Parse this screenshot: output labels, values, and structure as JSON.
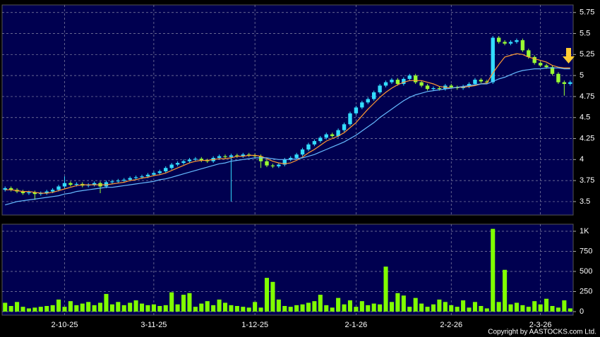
{
  "chart_data": [
    {
      "type": "candlestick",
      "up_color": "#33ddff",
      "down_color": "#99ff33",
      "open": [
        3.64,
        3.66,
        3.64,
        3.62,
        3.6,
        3.61,
        3.59,
        3.6,
        3.62,
        3.64,
        3.68,
        3.72,
        3.7,
        3.71,
        3.69,
        3.7,
        3.72,
        3.68,
        3.73,
        3.74,
        3.75,
        3.76,
        3.78,
        3.79,
        3.8,
        3.82,
        3.84,
        3.86,
        3.9,
        3.94,
        3.96,
        3.98,
        4.0,
        4.01,
        3.99,
        3.98,
        4.02,
        4.04,
        4.03,
        4.05,
        4.04,
        4.06,
        4.05,
        4.04,
        3.98,
        3.93,
        3.92,
        3.94,
        4.0,
        4.02,
        4.06,
        4.12,
        4.18,
        4.22,
        4.26,
        4.3,
        4.28,
        4.35,
        4.42,
        4.55,
        4.62,
        4.68,
        4.72,
        4.8,
        4.88,
        4.92,
        4.95,
        4.9,
        4.96,
        5.0,
        4.92,
        4.88,
        4.84,
        4.85,
        4.84,
        4.88,
        4.86,
        4.85,
        4.87,
        4.9,
        4.95,
        4.93,
        4.92,
        5.45,
        5.4,
        5.38,
        5.4,
        5.42,
        5.3,
        5.22,
        5.15,
        5.12,
        5.1,
        5.02,
        4.92,
        4.9
      ],
      "high": [
        3.68,
        3.68,
        3.66,
        3.64,
        3.63,
        3.63,
        3.62,
        3.64,
        3.66,
        3.7,
        3.8,
        3.74,
        3.73,
        3.73,
        3.72,
        3.74,
        3.74,
        3.75,
        3.76,
        3.77,
        3.78,
        3.8,
        3.81,
        3.82,
        3.84,
        3.86,
        3.88,
        3.92,
        3.96,
        3.98,
        4.0,
        4.02,
        4.03,
        4.03,
        4.01,
        4.04,
        4.06,
        4.06,
        4.07,
        4.07,
        4.08,
        4.08,
        4.07,
        4.06,
        4.0,
        3.95,
        3.96,
        4.02,
        4.04,
        4.08,
        4.14,
        4.2,
        4.24,
        4.28,
        4.32,
        4.32,
        4.37,
        4.44,
        4.57,
        4.64,
        4.7,
        4.74,
        4.82,
        4.9,
        4.94,
        4.97,
        4.97,
        4.98,
        5.02,
        5.02,
        4.94,
        4.9,
        4.87,
        4.87,
        4.9,
        4.9,
        4.88,
        4.89,
        4.92,
        4.97,
        4.97,
        4.95,
        5.47,
        5.47,
        5.42,
        5.42,
        5.44,
        5.44,
        5.32,
        5.24,
        5.17,
        5.14,
        5.12,
        5.04,
        4.94,
        4.94
      ],
      "low": [
        3.62,
        3.62,
        3.6,
        3.58,
        3.58,
        3.52,
        3.57,
        3.58,
        3.6,
        3.62,
        3.66,
        3.68,
        3.68,
        3.67,
        3.67,
        3.68,
        3.6,
        3.66,
        3.71,
        3.72,
        3.73,
        3.74,
        3.76,
        3.77,
        3.78,
        3.8,
        3.82,
        3.84,
        3.88,
        3.92,
        3.94,
        3.96,
        3.98,
        3.97,
        3.96,
        3.96,
        4.0,
        4.01,
        3.5,
        4.02,
        4.02,
        4.03,
        4.02,
        3.9,
        3.91,
        3.9,
        3.9,
        3.92,
        3.98,
        4.0,
        4.04,
        4.1,
        4.16,
        4.2,
        4.24,
        4.26,
        4.26,
        4.33,
        4.4,
        4.53,
        4.6,
        4.66,
        4.7,
        4.78,
        4.86,
        4.9,
        4.88,
        4.88,
        4.94,
        4.9,
        4.86,
        4.82,
        4.82,
        4.82,
        4.82,
        4.84,
        4.83,
        4.83,
        4.85,
        4.88,
        4.91,
        4.9,
        4.9,
        5.38,
        5.36,
        5.36,
        5.38,
        5.28,
        5.2,
        5.13,
        5.1,
        5.08,
        5.0,
        4.9,
        4.76,
        4.88
      ],
      "close": [
        3.66,
        3.64,
        3.62,
        3.6,
        3.61,
        3.59,
        3.6,
        3.62,
        3.64,
        3.68,
        3.72,
        3.7,
        3.71,
        3.69,
        3.7,
        3.72,
        3.68,
        3.73,
        3.74,
        3.75,
        3.76,
        3.78,
        3.79,
        3.8,
        3.82,
        3.84,
        3.86,
        3.9,
        3.94,
        3.96,
        3.98,
        4.0,
        4.01,
        3.99,
        3.98,
        4.02,
        4.04,
        4.03,
        4.05,
        4.04,
        4.06,
        4.05,
        4.04,
        3.98,
        3.93,
        3.92,
        3.94,
        4.0,
        4.02,
        4.06,
        4.12,
        4.18,
        4.22,
        4.26,
        4.3,
        4.28,
        4.35,
        4.42,
        4.55,
        4.62,
        4.68,
        4.72,
        4.8,
        4.88,
        4.92,
        4.95,
        4.9,
        4.96,
        5.0,
        4.92,
        4.88,
        4.84,
        4.85,
        4.84,
        4.88,
        4.86,
        4.85,
        4.87,
        4.9,
        4.95,
        4.93,
        4.92,
        5.45,
        5.4,
        5.38,
        5.4,
        5.42,
        5.3,
        5.22,
        5.15,
        5.12,
        5.1,
        5.02,
        4.92,
        4.9,
        4.92
      ],
      "series": [
        {
          "color": "#ff9933",
          "values": [
            3.64,
            3.64,
            3.63,
            3.62,
            3.62,
            3.61,
            3.6,
            3.6,
            3.61,
            3.63,
            3.65,
            3.67,
            3.69,
            3.7,
            3.7,
            3.7,
            3.7,
            3.7,
            3.71,
            3.72,
            3.73,
            3.75,
            3.76,
            3.78,
            3.79,
            3.81,
            3.82,
            3.84,
            3.87,
            3.9,
            3.93,
            3.96,
            3.98,
            3.99,
            3.99,
            4.0,
            4.01,
            4.01,
            4.02,
            4.04,
            4.04,
            4.05,
            4.05,
            4.04,
            4.01,
            3.98,
            3.96,
            3.95,
            3.96,
            3.99,
            4.03,
            4.08,
            4.12,
            4.17,
            4.22,
            4.25,
            4.28,
            4.32,
            4.38,
            4.44,
            4.52,
            4.6,
            4.67,
            4.74,
            4.8,
            4.85,
            4.89,
            4.92,
            4.94,
            4.94,
            4.94,
            4.92,
            4.9,
            4.87,
            4.86,
            4.85,
            4.86,
            4.86,
            4.87,
            4.88,
            4.9,
            4.91,
            5.03,
            5.13,
            5.22,
            5.24,
            5.26,
            5.25,
            5.22,
            5.2,
            5.18,
            5.16,
            5.12,
            5.1,
            5.09,
            5.09
          ]
        },
        {
          "color": "#66bbff",
          "values": [
            3.46,
            3.48,
            3.5,
            3.51,
            3.52,
            3.53,
            3.54,
            3.55,
            3.56,
            3.57,
            3.59,
            3.6,
            3.62,
            3.63,
            3.64,
            3.65,
            3.66,
            3.67,
            3.67,
            3.68,
            3.69,
            3.7,
            3.71,
            3.72,
            3.73,
            3.74,
            3.76,
            3.77,
            3.79,
            3.81,
            3.83,
            3.85,
            3.87,
            3.89,
            3.91,
            3.93,
            3.95,
            3.96,
            3.98,
            3.99,
            4.0,
            4.01,
            4.02,
            4.02,
            4.02,
            4.01,
            4.0,
            4.0,
            4.0,
            4.01,
            4.02,
            4.04,
            4.06,
            4.09,
            4.12,
            4.15,
            4.18,
            4.21,
            4.25,
            4.29,
            4.34,
            4.39,
            4.44,
            4.5,
            4.55,
            4.6,
            4.65,
            4.7,
            4.74,
            4.77,
            4.79,
            4.81,
            4.82,
            4.83,
            4.84,
            4.85,
            4.86,
            4.87,
            4.88,
            4.89,
            4.9,
            4.9,
            4.93,
            4.96,
            4.98,
            5.01,
            5.04,
            5.06,
            5.07,
            5.08,
            5.08,
            5.09,
            5.09,
            5.09,
            5.08,
            5.08
          ]
        }
      ],
      "ylim": [
        3.34,
        5.84
      ],
      "yticks": [
        3.5,
        3.75,
        4,
        4.25,
        4.5,
        4.75,
        5,
        5.25,
        5.5,
        5.75
      ],
      "grid": true
    },
    {
      "type": "bar",
      "categories": [
        null,
        null,
        null,
        null,
        null,
        null,
        null,
        null,
        null,
        null,
        "2-10-25",
        null,
        null,
        null,
        null,
        null,
        null,
        null,
        null,
        null,
        null,
        null,
        null,
        null,
        null,
        "3-11-25",
        null,
        null,
        null,
        null,
        null,
        null,
        null,
        null,
        null,
        null,
        null,
        null,
        null,
        null,
        null,
        null,
        "1-12-25",
        null,
        null,
        null,
        null,
        null,
        null,
        null,
        null,
        null,
        null,
        null,
        null,
        null,
        null,
        null,
        null,
        "2-1-26",
        null,
        null,
        null,
        null,
        null,
        null,
        null,
        null,
        null,
        null,
        null,
        null,
        null,
        null,
        null,
        "2-2-26",
        null,
        null,
        null,
        null,
        null,
        null,
        null,
        null,
        null,
        null,
        null,
        null,
        null,
        null,
        "2-3-26",
        null,
        null,
        null,
        null,
        null
      ],
      "values": [
        110,
        70,
        120,
        60,
        40,
        50,
        60,
        70,
        80,
        150,
        60,
        130,
        80,
        100,
        120,
        80,
        110,
        220,
        90,
        120,
        80,
        110,
        140,
        100,
        80,
        90,
        70,
        80,
        240,
        90,
        210,
        230,
        60,
        100,
        130,
        80,
        150,
        110,
        80,
        70,
        60,
        50,
        120,
        50,
        420,
        370,
        150,
        70,
        60,
        80,
        90,
        110,
        130,
        210,
        80,
        50,
        170,
        90,
        140,
        60,
        130,
        80,
        100,
        90,
        560,
        120,
        230,
        200,
        60,
        170,
        100,
        60,
        90,
        150,
        120,
        80,
        60,
        140,
        50,
        120,
        70,
        40,
        1030,
        120,
        520,
        90,
        110,
        80,
        60,
        130,
        90,
        160,
        70,
        50,
        140,
        40
      ],
      "color": "#80ff00",
      "ylim": [
        -44,
        1088
      ],
      "yticks": [
        0,
        250,
        500,
        750,
        {
          "value": 1000,
          "label": "1K"
        }
      ],
      "grid": true
    }
  ],
  "copyright": "Copyright by AASTOCKS.com Ltd."
}
